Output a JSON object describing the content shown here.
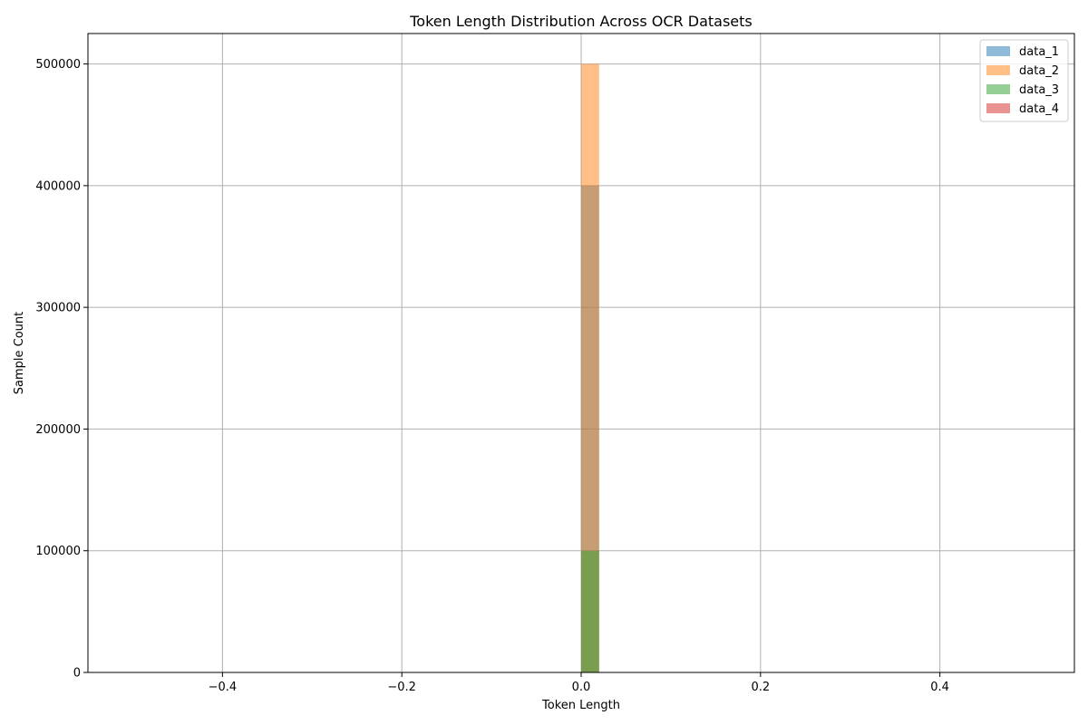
{
  "chart_data": {
    "type": "bar",
    "title": "Token Length Distribution Across OCR Datasets",
    "xlabel": "Token Length",
    "ylabel": "Sample Count",
    "xlim": [
      -0.55,
      0.55
    ],
    "ylim": [
      0,
      525000
    ],
    "xticks": [
      -0.4,
      -0.2,
      0.0,
      0.2,
      0.4
    ],
    "xtick_labels": [
      "−0.4",
      "−0.2",
      "0.0",
      "0.2",
      "0.4"
    ],
    "yticks": [
      0,
      100000,
      200000,
      300000,
      400000,
      500000
    ],
    "ytick_labels": [
      "0",
      "100000",
      "200000",
      "300000",
      "400000",
      "500000"
    ],
    "grid": true,
    "legend_position": "top-right",
    "bin_range": [
      0.0,
      0.02
    ],
    "series": [
      {
        "name": "data_1",
        "value": 400000,
        "color": "#1f77b4"
      },
      {
        "name": "data_2",
        "value": 500000,
        "color": "#ff7f0e"
      },
      {
        "name": "data_3",
        "value": 100000,
        "color": "#2ca02c"
      },
      {
        "name": "data_4",
        "value": 0,
        "color": "#d62728"
      }
    ],
    "bar_opacity": 0.5
  }
}
